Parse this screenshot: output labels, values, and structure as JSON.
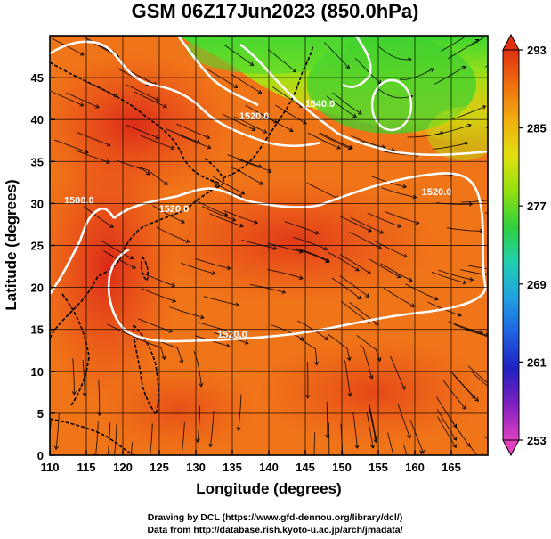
{
  "chart_data": {
    "type": "heatmap",
    "title": "GSM 06Z17Jun2023 (850.0hPa)",
    "xlabel": "Longitude (degrees)",
    "ylabel": "Latitude  (degrees)",
    "xlim": [
      110,
      170
    ],
    "ylim": [
      0,
      50
    ],
    "x_ticks": [
      "110",
      "115",
      "120",
      "125",
      "130",
      "135",
      "140",
      "145",
      "150",
      "155",
      "160",
      "165"
    ],
    "y_ticks": [
      "0",
      "5",
      "10",
      "15",
      "20",
      "25",
      "30",
      "35",
      "40",
      "45"
    ],
    "grid": true,
    "colorbar": {
      "placement": "right",
      "min": 253,
      "max": 293,
      "ticks": [
        "293",
        "285",
        "277",
        "269",
        "261",
        "253"
      ],
      "colors": [
        "#e040c0",
        "#8020c0",
        "#2020c0",
        "#2060e0",
        "#20a0e0",
        "#20d0b0",
        "#30d040",
        "#90e010",
        "#e0e010",
        "#f0b010",
        "#f07010",
        "#e03010"
      ]
    },
    "contours": [
      {
        "label": "1500.0",
        "lon": 114,
        "lat": 30
      },
      {
        "label": "1520.0",
        "lon": 127,
        "lat": 29
      },
      {
        "label": "1520.0",
        "lon": 138,
        "lat": 40
      },
      {
        "label": "1540.0",
        "lon": 147,
        "lat": 41.5
      },
      {
        "label": "1520.0",
        "lon": 163,
        "lat": 31
      },
      {
        "label": "1520.0",
        "lon": 135,
        "lat": 14
      }
    ],
    "colors": {
      "warm": "#e8401c",
      "mid": "#f07818",
      "cool": "#50d030",
      "contour": "#ffffff"
    }
  },
  "credits": {
    "line1": "Drawing by DCL (https://www.gfd-dennou.org/library/dcl/)",
    "line2": "Data from http://database.rish.kyoto-u.ac.jp/arch/jmadata/"
  }
}
